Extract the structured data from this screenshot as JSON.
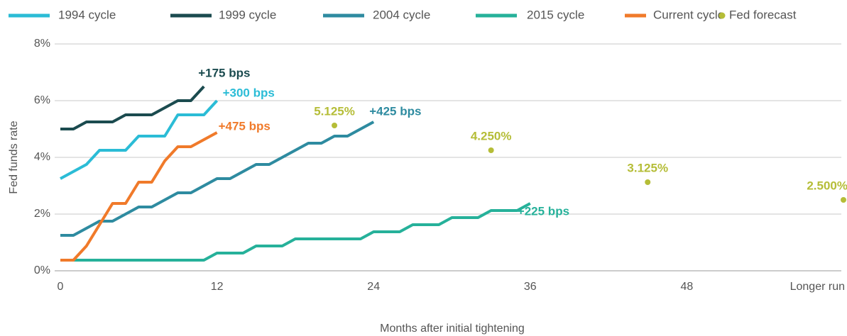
{
  "chart_data": {
    "type": "line",
    "xlabel": "Months after initial tightening",
    "ylabel": "Fed funds rate",
    "xlim": [
      0,
      60
    ],
    "xticks": [
      0,
      12,
      24,
      36,
      48,
      {
        "value": 60,
        "label": "Longer run"
      }
    ],
    "ylim": [
      0,
      8
    ],
    "yticks": [
      {
        "value": 0,
        "label": "0%"
      },
      {
        "value": 2,
        "label": "2%"
      },
      {
        "value": 4,
        "label": "4%"
      },
      {
        "value": 6,
        "label": "6%"
      },
      {
        "value": 8,
        "label": "8%"
      }
    ],
    "grid": true,
    "legend": "top",
    "series": [
      {
        "name": "1994 cycle",
        "type": "line",
        "color": "#2bbcd6",
        "annotation": "+300 bps",
        "x": [
          0,
          1,
          2,
          3,
          4,
          5,
          6,
          7,
          8,
          9,
          10,
          11,
          12
        ],
        "values": [
          3.25,
          3.5,
          3.75,
          4.25,
          4.25,
          4.25,
          4.75,
          4.75,
          4.75,
          5.5,
          5.5,
          5.5,
          6.0
        ]
      },
      {
        "name": "1999 cycle",
        "type": "line",
        "color": "#1b4b4f",
        "annotation": "+175 bps",
        "x": [
          0,
          1,
          2,
          3,
          4,
          5,
          6,
          7,
          8,
          9,
          10,
          11
        ],
        "values": [
          5.0,
          5.0,
          5.25,
          5.25,
          5.25,
          5.5,
          5.5,
          5.5,
          5.75,
          6.0,
          6.0,
          6.5
        ]
      },
      {
        "name": "2004 cycle",
        "type": "line",
        "color": "#2e8ba0",
        "annotation": "+425 bps",
        "x": [
          0,
          1,
          2,
          3,
          4,
          5,
          6,
          7,
          8,
          9,
          10,
          11,
          12,
          13,
          14,
          15,
          16,
          17,
          18,
          19,
          20,
          21,
          22,
          23,
          24
        ],
        "values": [
          1.25,
          1.25,
          1.5,
          1.75,
          1.75,
          2.0,
          2.25,
          2.25,
          2.5,
          2.75,
          2.75,
          3.0,
          3.25,
          3.25,
          3.5,
          3.75,
          3.75,
          4.0,
          4.25,
          4.5,
          4.5,
          4.75,
          4.75,
          5.0,
          5.25
        ]
      },
      {
        "name": "2015 cycle",
        "type": "line",
        "color": "#26b19a",
        "annotation": "+225 bps",
        "x": [
          0,
          11,
          12,
          14,
          15,
          17,
          18,
          23,
          24,
          26,
          27,
          29,
          30,
          32,
          33,
          35,
          36
        ],
        "values": [
          0.375,
          0.375,
          0.625,
          0.625,
          0.875,
          0.875,
          1.125,
          1.125,
          1.375,
          1.375,
          1.625,
          1.625,
          1.875,
          1.875,
          2.125,
          2.125,
          2.375
        ]
      },
      {
        "name": "Current cycle",
        "type": "line",
        "color": "#f07a2a",
        "annotation": "+475 bps",
        "x": [
          0,
          1,
          2,
          3,
          4,
          5,
          6,
          7,
          8,
          9,
          10,
          11,
          12
        ],
        "values": [
          0.375,
          0.375,
          0.875,
          1.625,
          2.375,
          2.375,
          3.125,
          3.125,
          3.875,
          4.375,
          4.375,
          4.625,
          4.875
        ]
      },
      {
        "name": "Fed forecast",
        "type": "scatter",
        "color": "#b5bd37",
        "x": [
          21,
          33,
          45,
          60
        ],
        "values": [
          5.125,
          4.25,
          3.125,
          2.5
        ],
        "value_labels": [
          "5.125%",
          "4.250%",
          "3.125%",
          "2.500%"
        ]
      }
    ]
  }
}
